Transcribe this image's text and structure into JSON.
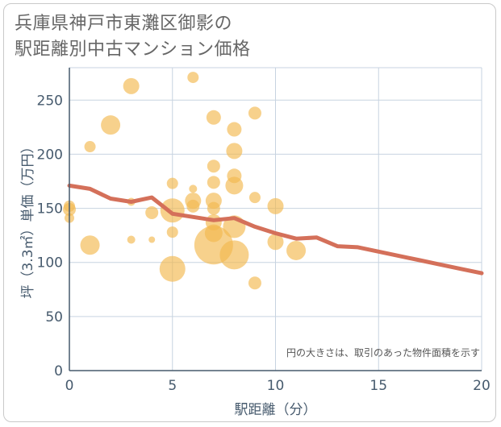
{
  "title": {
    "line1": "兵庫県神戸市東灘区御影の",
    "line2": "駅距離別中古マンション価格"
  },
  "chart_data": {
    "type": "scatter",
    "title": "兵庫県神戸市東灘区御影の駅距離別中古マンション価格",
    "xlabel": "駅距離（分）",
    "ylabel": "坪（3.3㎡）単価（万円）",
    "xlim": [
      0,
      20
    ],
    "ylim": [
      0,
      280
    ],
    "xticks": [
      0,
      5,
      10,
      15,
      20
    ],
    "yticks": [
      0,
      50,
      100,
      150,
      200,
      250
    ],
    "grid": true,
    "note": "円の大きさは、取引のあった物件面積を示す",
    "colors": {
      "bubble": "#f3b94f",
      "line": "#d4705a",
      "grid": "#c7d3e0",
      "axis": "#465a6d"
    },
    "points": [
      {
        "x": 0,
        "y": 152,
        "r": 7
      },
      {
        "x": 0,
        "y": 149,
        "r": 8
      },
      {
        "x": 0,
        "y": 141,
        "r": 6
      },
      {
        "x": 1,
        "y": 207,
        "r": 7
      },
      {
        "x": 1,
        "y": 116,
        "r": 12
      },
      {
        "x": 2,
        "y": 227,
        "r": 12
      },
      {
        "x": 3,
        "y": 263,
        "r": 10
      },
      {
        "x": 3,
        "y": 156,
        "r": 5
      },
      {
        "x": 3,
        "y": 121,
        "r": 5
      },
      {
        "x": 4,
        "y": 146,
        "r": 8
      },
      {
        "x": 4,
        "y": 121,
        "r": 4
      },
      {
        "x": 5,
        "y": 173,
        "r": 7
      },
      {
        "x": 5,
        "y": 148,
        "r": 15
      },
      {
        "x": 5,
        "y": 128,
        "r": 7
      },
      {
        "x": 5,
        "y": 94,
        "r": 16
      },
      {
        "x": 6,
        "y": 271,
        "r": 7
      },
      {
        "x": 6,
        "y": 168,
        "r": 5
      },
      {
        "x": 6,
        "y": 157,
        "r": 10
      },
      {
        "x": 6,
        "y": 152,
        "r": 8
      },
      {
        "x": 7,
        "y": 234,
        "r": 9
      },
      {
        "x": 7,
        "y": 189,
        "r": 8
      },
      {
        "x": 7,
        "y": 174,
        "r": 8
      },
      {
        "x": 7,
        "y": 157,
        "r": 10
      },
      {
        "x": 7,
        "y": 150,
        "r": 8
      },
      {
        "x": 7,
        "y": 137,
        "r": 10
      },
      {
        "x": 7,
        "y": 127,
        "r": 11
      },
      {
        "x": 7,
        "y": 116,
        "r": 24
      },
      {
        "x": 8,
        "y": 223,
        "r": 9
      },
      {
        "x": 8,
        "y": 203,
        "r": 10
      },
      {
        "x": 8,
        "y": 180,
        "r": 9
      },
      {
        "x": 8,
        "y": 171,
        "r": 11
      },
      {
        "x": 8,
        "y": 133,
        "r": 14
      },
      {
        "x": 8,
        "y": 107,
        "r": 18
      },
      {
        "x": 9,
        "y": 238,
        "r": 8
      },
      {
        "x": 9,
        "y": 160,
        "r": 7
      },
      {
        "x": 9,
        "y": 81,
        "r": 8
      },
      {
        "x": 10,
        "y": 152,
        "r": 10
      },
      {
        "x": 10,
        "y": 119,
        "r": 10
      },
      {
        "x": 11,
        "y": 111,
        "r": 12
      }
    ],
    "series": [
      {
        "x": [
          0,
          1,
          2,
          3,
          4,
          5,
          6,
          7,
          8,
          9,
          10,
          11,
          12,
          13,
          14,
          15,
          16,
          17,
          18,
          19,
          20
        ],
        "y": [
          171,
          168,
          159,
          156,
          160,
          145,
          142,
          139,
          141,
          133,
          127,
          122,
          123,
          115,
          114,
          110,
          106,
          102,
          98,
          94,
          90
        ]
      }
    ]
  }
}
